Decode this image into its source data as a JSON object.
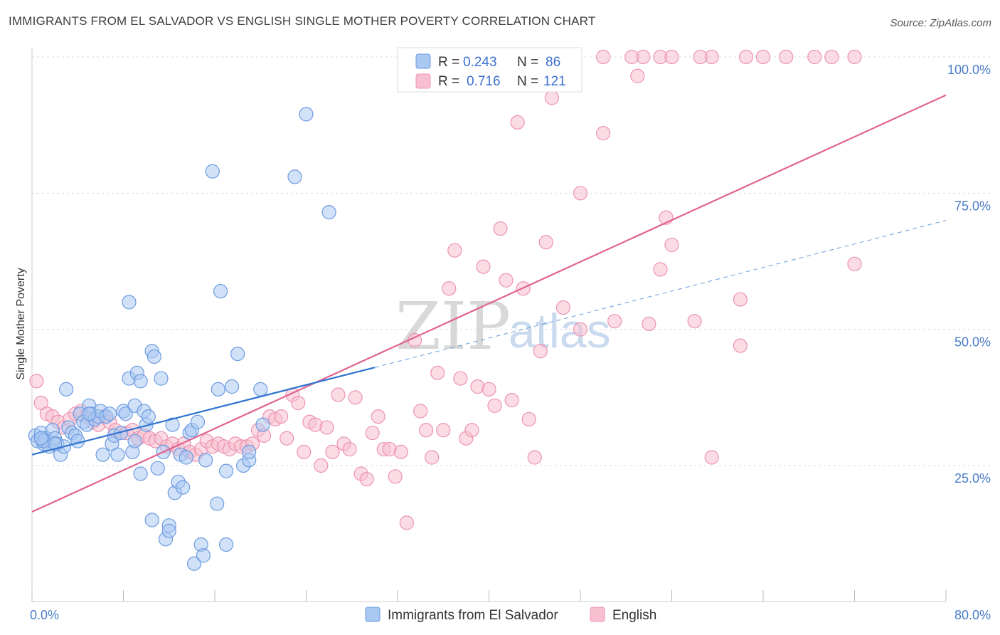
{
  "header": {
    "title": "IMMIGRANTS FROM EL SALVADOR VS ENGLISH SINGLE MOTHER POVERTY CORRELATION CHART",
    "source": "Source: ZipAtlas.com"
  },
  "watermark": {
    "zip": "ZIP",
    "atlas": "atlas"
  },
  "legend_box": {
    "rows": [
      {
        "r_label": "R =",
        "r_value": "0.243",
        "n_label": "N =",
        "n_value": "86"
      },
      {
        "r_label": "R =",
        "r_value": "0.716",
        "n_label": "N =",
        "n_value": "121"
      }
    ]
  },
  "chart_data": {
    "type": "scatter",
    "title": "IMMIGRANTS FROM EL SALVADOR VS ENGLISH SINGLE MOTHER POVERTY CORRELATION CHART",
    "xlabel": "",
    "ylabel": "Single Mother Poverty",
    "xlim": [
      0,
      80
    ],
    "ylim": [
      0,
      103
    ],
    "x_tick_labels": [
      "0.0%",
      "80.0%"
    ],
    "y_ticks": [
      25,
      50,
      75,
      100
    ],
    "y_tick_labels": [
      "25.0%",
      "50.0%",
      "75.0%",
      "100.0%"
    ],
    "grid": true,
    "legend_position": "top-center",
    "colors": {
      "blue_fill": "#a9c8f2",
      "blue_stroke": "#6d9be0",
      "blue_line": "#2f74d0",
      "pink_fill": "#f7bfd0",
      "pink_stroke": "#ec93b0",
      "pink_line": "#e0648e"
    },
    "series": [
      {
        "name": "Immigrants from El Salvador",
        "r": 0.243,
        "n": 86,
        "trend": {
          "x0": 0,
          "y0": 27.0,
          "x1": 30,
          "y1": 43.0,
          "dash_to_x": 80,
          "dash_to_y": 70.0
        },
        "points": [
          [
            0.3,
            30.5
          ],
          [
            0.5,
            29.5
          ],
          [
            0.8,
            31.0
          ],
          [
            1.0,
            29.0
          ],
          [
            1.2,
            30.0
          ],
          [
            1.5,
            28.5
          ],
          [
            1.8,
            31.5
          ],
          [
            2.0,
            30.0
          ],
          [
            2.2,
            29.0
          ],
          [
            2.5,
            27.0
          ],
          [
            2.8,
            28.5
          ],
          [
            3.0,
            39.0
          ],
          [
            3.2,
            32.0
          ],
          [
            3.5,
            31.0
          ],
          [
            3.8,
            30.5
          ],
          [
            4.0,
            29.5
          ],
          [
            4.2,
            34.5
          ],
          [
            4.5,
            33.0
          ],
          [
            4.8,
            32.5
          ],
          [
            5.0,
            36.0
          ],
          [
            5.2,
            34.5
          ],
          [
            5.5,
            33.5
          ],
          [
            5.8,
            34.0
          ],
          [
            6.0,
            35.0
          ],
          [
            6.2,
            27.0
          ],
          [
            6.5,
            34.0
          ],
          [
            6.8,
            34.5
          ],
          [
            7.0,
            29.0
          ],
          [
            7.2,
            30.5
          ],
          [
            7.5,
            27.0
          ],
          [
            7.8,
            31.0
          ],
          [
            8.0,
            35.0
          ],
          [
            8.2,
            34.5
          ],
          [
            8.5,
            55.0
          ],
          [
            8.5,
            41.0
          ],
          [
            8.8,
            27.5
          ],
          [
            9.0,
            29.5
          ],
          [
            9.0,
            36.0
          ],
          [
            9.2,
            42.0
          ],
          [
            9.5,
            23.5
          ],
          [
            9.5,
            40.5
          ],
          [
            9.8,
            35.0
          ],
          [
            10.0,
            32.5
          ],
          [
            10.2,
            34.0
          ],
          [
            10.5,
            46.0
          ],
          [
            10.5,
            15.0
          ],
          [
            10.7,
            45.0
          ],
          [
            11.0,
            24.5
          ],
          [
            11.3,
            41.0
          ],
          [
            11.5,
            27.5
          ],
          [
            11.7,
            11.5
          ],
          [
            12.0,
            14.0
          ],
          [
            12.0,
            13.0
          ],
          [
            12.3,
            32.5
          ],
          [
            12.5,
            20.0
          ],
          [
            12.8,
            22.0
          ],
          [
            13.0,
            27.0
          ],
          [
            13.2,
            21.0
          ],
          [
            13.5,
            26.5
          ],
          [
            13.8,
            31.0
          ],
          [
            14.0,
            31.5
          ],
          [
            14.2,
            7.0
          ],
          [
            14.5,
            33.0
          ],
          [
            14.8,
            10.5
          ],
          [
            15.0,
            8.5
          ],
          [
            15.2,
            26.0
          ],
          [
            15.8,
            79.0
          ],
          [
            16.2,
            18.0
          ],
          [
            16.3,
            39.0
          ],
          [
            16.5,
            57.0
          ],
          [
            17.0,
            24.0
          ],
          [
            17.0,
            10.5
          ],
          [
            17.5,
            39.5
          ],
          [
            18.0,
            45.5
          ],
          [
            18.5,
            25.0
          ],
          [
            19.0,
            26.0
          ],
          [
            19.0,
            27.5
          ],
          [
            20.0,
            39.0
          ],
          [
            20.2,
            32.5
          ],
          [
            23.0,
            78.0
          ],
          [
            24.0,
            89.5
          ],
          [
            26.0,
            71.5
          ],
          [
            1.0,
            29.5
          ],
          [
            0.8,
            30.0
          ],
          [
            2.0,
            29.0
          ],
          [
            5.0,
            34.5
          ]
        ]
      },
      {
        "name": "English",
        "r": 0.716,
        "n": 121,
        "trend": {
          "x0": 0,
          "y0": 16.5,
          "x1": 80,
          "y1": 93.0
        },
        "points": [
          [
            0.4,
            40.5
          ],
          [
            0.8,
            36.5
          ],
          [
            1.3,
            34.5
          ],
          [
            1.8,
            34.0
          ],
          [
            2.3,
            33.0
          ],
          [
            2.8,
            32.0
          ],
          [
            3.3,
            33.5
          ],
          [
            3.8,
            34.5
          ],
          [
            4.3,
            35.0
          ],
          [
            4.8,
            34.0
          ],
          [
            5.3,
            33.0
          ],
          [
            5.8,
            32.5
          ],
          [
            6.3,
            34.0
          ],
          [
            6.8,
            33.0
          ],
          [
            7.3,
            31.5
          ],
          [
            7.8,
            31.0
          ],
          [
            8.3,
            31.0
          ],
          [
            8.8,
            31.5
          ],
          [
            9.3,
            30.0
          ],
          [
            9.8,
            30.5
          ],
          [
            10.3,
            30.0
          ],
          [
            10.8,
            29.5
          ],
          [
            11.3,
            30.0
          ],
          [
            11.8,
            28.5
          ],
          [
            12.3,
            29.0
          ],
          [
            12.8,
            28.0
          ],
          [
            13.3,
            29.0
          ],
          [
            13.8,
            27.5
          ],
          [
            14.3,
            27.0
          ],
          [
            14.8,
            28.0
          ],
          [
            15.3,
            29.5
          ],
          [
            15.8,
            28.5
          ],
          [
            16.3,
            29.0
          ],
          [
            16.8,
            28.5
          ],
          [
            17.3,
            28.0
          ],
          [
            17.8,
            29.0
          ],
          [
            18.3,
            28.5
          ],
          [
            18.8,
            28.5
          ],
          [
            19.3,
            29.0
          ],
          [
            19.8,
            31.5
          ],
          [
            20.3,
            30.5
          ],
          [
            20.8,
            34.0
          ],
          [
            21.3,
            33.5
          ],
          [
            21.8,
            34.0
          ],
          [
            22.3,
            30.0
          ],
          [
            22.8,
            38.0
          ],
          [
            23.3,
            36.5
          ],
          [
            23.8,
            27.5
          ],
          [
            24.3,
            33.0
          ],
          [
            24.8,
            32.5
          ],
          [
            25.3,
            25.0
          ],
          [
            25.8,
            32.0
          ],
          [
            26.3,
            27.5
          ],
          [
            26.8,
            38.0
          ],
          [
            27.3,
            29.0
          ],
          [
            27.8,
            28.0
          ],
          [
            28.3,
            37.5
          ],
          [
            28.8,
            23.5
          ],
          [
            29.3,
            22.5
          ],
          [
            29.8,
            31.0
          ],
          [
            30.3,
            34.0
          ],
          [
            30.8,
            28.0
          ],
          [
            31.3,
            28.0
          ],
          [
            31.8,
            23.0
          ],
          [
            32.3,
            27.5
          ],
          [
            32.8,
            14.5
          ],
          [
            33.5,
            48.0
          ],
          [
            34.0,
            35.0
          ],
          [
            34.5,
            31.5
          ],
          [
            35.0,
            26.5
          ],
          [
            35.5,
            42.0
          ],
          [
            36.0,
            31.5
          ],
          [
            36.5,
            57.5
          ],
          [
            37.0,
            64.5
          ],
          [
            37.5,
            41.0
          ],
          [
            38.0,
            30.0
          ],
          [
            38.5,
            31.5
          ],
          [
            39.0,
            39.5
          ],
          [
            39.5,
            61.5
          ],
          [
            40.0,
            39.0
          ],
          [
            40.5,
            36.0
          ],
          [
            41.0,
            68.5
          ],
          [
            41.5,
            59.0
          ],
          [
            42.0,
            37.0
          ],
          [
            42.5,
            88.0
          ],
          [
            43.0,
            57.5
          ],
          [
            43.5,
            33.5
          ],
          [
            44.0,
            26.5
          ],
          [
            44.5,
            46.0
          ],
          [
            45.0,
            66.0
          ],
          [
            45.5,
            92.5
          ],
          [
            46.5,
            54.0
          ],
          [
            48.0,
            75.0
          ],
          [
            48.0,
            50.0
          ],
          [
            50.0,
            86.0
          ],
          [
            51.0,
            51.5
          ],
          [
            53.0,
            96.5
          ],
          [
            54.0,
            51.0
          ],
          [
            55.0,
            61.0
          ],
          [
            55.5,
            70.5
          ],
          [
            56.0,
            65.5
          ],
          [
            58.0,
            51.5
          ],
          [
            59.5,
            26.5
          ],
          [
            62.0,
            47.0
          ],
          [
            62.0,
            55.5
          ],
          [
            72.0,
            62.0
          ],
          [
            44.5,
            100.0
          ],
          [
            45.0,
            100.0
          ],
          [
            50.0,
            100.0
          ],
          [
            53.5,
            100.0
          ],
          [
            55.0,
            100.0
          ],
          [
            59.5,
            100.0
          ],
          [
            62.5,
            100.0
          ],
          [
            66.0,
            100.0
          ],
          [
            68.5,
            100.0
          ],
          [
            70.0,
            100.0
          ],
          [
            72.0,
            100.0
          ],
          [
            56.0,
            100.0
          ],
          [
            58.5,
            100.0
          ],
          [
            52.5,
            100.0
          ],
          [
            64.0,
            100.0
          ]
        ]
      }
    ]
  }
}
